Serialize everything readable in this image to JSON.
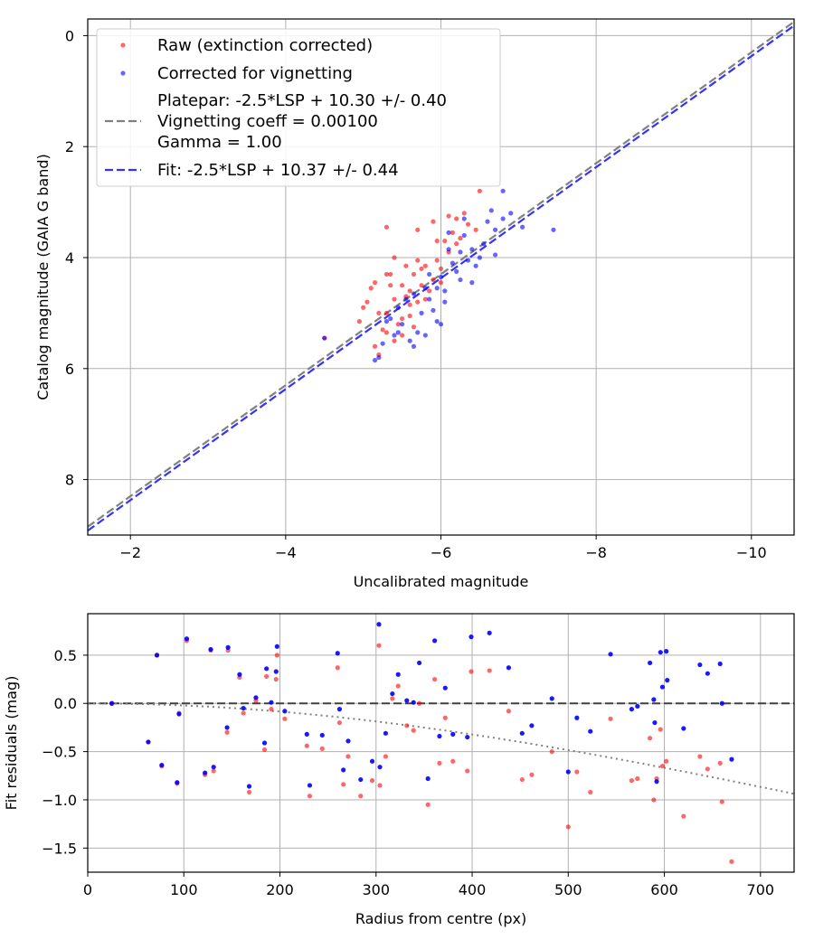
{
  "colors": {
    "raw": "#ff0000",
    "corrected": "#0000ff",
    "platepar_line": "#808080",
    "fit_line": "#3333ff",
    "grid": "#b0b0b0"
  },
  "chart_data": [
    {
      "type": "scatter",
      "xlabel": "Uncalibrated magnitude",
      "ylabel": "Catalog magnitude (GAIA G band)",
      "xlim": [
        -1.45,
        -10.55
      ],
      "ylim": [
        9.0,
        -0.3
      ],
      "x_inverted": true,
      "y_inverted": true,
      "xticks": [
        -2,
        -4,
        -6,
        -8,
        -10
      ],
      "xtick_labels": [
        "−2",
        "−4",
        "−6",
        "−8",
        "−10"
      ],
      "yticks": [
        0,
        2,
        4,
        6,
        8
      ],
      "ytick_labels": [
        "0",
        "2",
        "4",
        "6",
        "8"
      ],
      "grid": true,
      "legend_position": "upper-left",
      "legend": [
        {
          "label": "Raw (extinction corrected)",
          "kind": "dot",
          "color": "#ff0000"
        },
        {
          "label": "Corrected for vignetting",
          "kind": "dot",
          "color": "#0000ff"
        },
        {
          "label": "Platepar: -2.5*LSP + 10.30 +/- 0.40",
          "label2": "Vignetting coeff = 0.00100",
          "label3": "Gamma = 1.00",
          "kind": "dash",
          "color": "#808080"
        },
        {
          "label": "Fit: -2.5*LSP + 10.37 +/- 0.44",
          "kind": "dash",
          "color": "#3333ff"
        }
      ],
      "lines": [
        {
          "name": "Platepar",
          "slope": 1,
          "intercept": 10.3,
          "color": "#808080"
        },
        {
          "name": "Fit",
          "slope": 1,
          "intercept": 10.37,
          "color": "#3333ff"
        }
      ],
      "series": [
        {
          "name": "Raw (extinction corrected)",
          "color": "#ff0000",
          "points": [
            [
              -4.5,
              5.45
            ],
            [
              -5.0,
              4.9
            ],
            [
              -5.2,
              5.75
            ],
            [
              -5.15,
              5.6
            ],
            [
              -5.25,
              5.3
            ],
            [
              -5.3,
              5.0
            ],
            [
              -5.3,
              4.3
            ],
            [
              -5.35,
              4.5
            ],
            [
              -5.4,
              4.75
            ],
            [
              -5.45,
              5.2
            ],
            [
              -5.5,
              4.5
            ],
            [
              -5.55,
              4.15
            ],
            [
              -5.6,
              4.6
            ],
            [
              -5.65,
              4.3
            ],
            [
              -5.7,
              4.8
            ],
            [
              -5.75,
              4.5
            ],
            [
              -5.8,
              4.15
            ],
            [
              -5.8,
              4.75
            ],
            [
              -5.9,
              4.4
            ],
            [
              -5.95,
              4.05
            ],
            [
              -6.0,
              4.45
            ],
            [
              -6.05,
              3.7
            ],
            [
              -6.1,
              3.9
            ],
            [
              -6.15,
              3.55
            ],
            [
              -6.2,
              3.3
            ],
            [
              -6.25,
              3.65
            ],
            [
              -6.3,
              3.2
            ],
            [
              -6.35,
              3.4
            ],
            [
              -6.45,
              3.5
            ],
            [
              -6.5,
              2.8
            ],
            [
              -5.3,
              3.45
            ],
            [
              -5.7,
              3.5
            ],
            [
              -5.9,
              3.35
            ],
            [
              -5.95,
              3.7
            ],
            [
              -6.1,
              3.25
            ],
            [
              -4.95,
              5.15
            ],
            [
              -5.05,
              4.8
            ],
            [
              -5.1,
              4.55
            ],
            [
              -5.2,
              5.0
            ],
            [
              -5.4,
              4.0
            ],
            [
              -5.5,
              5.1
            ],
            [
              -5.6,
              4.85
            ],
            [
              -5.65,
              5.25
            ],
            [
              -5.75,
              4.2
            ],
            [
              -5.85,
              4.6
            ],
            [
              -5.5,
              5.4
            ],
            [
              -5.4,
              5.5
            ],
            [
              -5.3,
              5.35
            ],
            [
              -5.6,
              5.05
            ],
            [
              -6.0,
              4.2
            ],
            [
              -5.15,
              4.45
            ],
            [
              -5.35,
              4.3
            ],
            [
              -5.55,
              4.7
            ],
            [
              -5.7,
              4.05
            ],
            [
              -6.2,
              3.75
            ]
          ]
        },
        {
          "name": "Corrected for vignetting",
          "color": "#0000ff",
          "points": [
            [
              -4.5,
              5.45
            ],
            [
              -5.2,
              5.8
            ],
            [
              -5.25,
              5.55
            ],
            [
              -5.4,
              5.4
            ],
            [
              -5.35,
              5.1
            ],
            [
              -5.45,
              4.9
            ],
            [
              -5.5,
              5.2
            ],
            [
              -5.55,
              4.75
            ],
            [
              -5.6,
              5.5
            ],
            [
              -5.65,
              4.65
            ],
            [
              -5.7,
              5.35
            ],
            [
              -5.75,
              5.0
            ],
            [
              -5.8,
              4.55
            ],
            [
              -5.85,
              4.3
            ],
            [
              -5.9,
              4.95
            ],
            [
              -5.95,
              4.55
            ],
            [
              -6.0,
              4.35
            ],
            [
              -6.05,
              4.6
            ],
            [
              -6.1,
              3.85
            ],
            [
              -6.15,
              4.1
            ],
            [
              -6.2,
              4.25
            ],
            [
              -6.25,
              3.9
            ],
            [
              -6.3,
              3.6
            ],
            [
              -6.35,
              4.05
            ],
            [
              -6.4,
              3.85
            ],
            [
              -6.45,
              4.15
            ],
            [
              -6.55,
              3.75
            ],
            [
              -6.6,
              3.35
            ],
            [
              -6.65,
              3.15
            ],
            [
              -6.7,
              3.5
            ],
            [
              -6.8,
              3.3
            ],
            [
              -6.9,
              3.2
            ],
            [
              -7.05,
              3.45
            ],
            [
              -7.45,
              3.5
            ],
            [
              -6.8,
              2.8
            ],
            [
              -6.5,
              4.0
            ],
            [
              -6.25,
              4.4
            ],
            [
              -6.05,
              4.8
            ],
            [
              -5.95,
              5.15
            ],
            [
              -5.8,
              5.4
            ],
            [
              -5.65,
              5.6
            ],
            [
              -5.45,
              5.35
            ],
            [
              -5.3,
              5.15
            ],
            [
              -5.15,
              5.85
            ],
            [
              -6.3,
              3.3
            ],
            [
              -6.7,
              3.95
            ],
            [
              -6.1,
              3.55
            ],
            [
              -5.85,
              4.75
            ],
            [
              -6.4,
              4.45
            ],
            [
              -6.0,
              5.2
            ]
          ]
        }
      ]
    },
    {
      "type": "scatter",
      "xlabel": "Radius from centre (px)",
      "ylabel": "Fit residuals (mag)",
      "xlim": [
        0,
        735
      ],
      "ylim": [
        -1.75,
        0.93
      ],
      "xticks": [
        0,
        100,
        200,
        300,
        400,
        500,
        600,
        700
      ],
      "xtick_labels": [
        "0",
        "100",
        "200",
        "300",
        "400",
        "500",
        "600",
        "700"
      ],
      "yticks": [
        0.5,
        0.0,
        -0.5,
        -1.0,
        -1.5
      ],
      "ytick_labels": [
        "0.5",
        "0.0",
        "−0.5",
        "−1.0",
        "−1.5"
      ],
      "grid": true,
      "zero_line": 0,
      "vignetting_curve": {
        "coeff": 0.001,
        "color": "#808080"
      },
      "series": [
        {
          "name": "Raw",
          "color": "#ff0000",
          "points": [
            [
              25,
              0.0
            ],
            [
              63,
              -0.4
            ],
            [
              72,
              0.5
            ],
            [
              77,
              -0.65
            ],
            [
              93,
              -0.83
            ],
            [
              95,
              -0.1
            ],
            [
              103,
              0.65
            ],
            [
              122,
              -0.74
            ],
            [
              128,
              0.55
            ],
            [
              131,
              -0.7
            ],
            [
              145,
              -0.3
            ],
            [
              146,
              0.55
            ],
            [
              158,
              0.27
            ],
            [
              162,
              -0.1
            ],
            [
              168,
              -0.92
            ],
            [
              175,
              0.03
            ],
            [
              184,
              -0.48
            ],
            [
              186,
              0.28
            ],
            [
              191,
              -0.06
            ],
            [
              196,
              0.25
            ],
            [
              197,
              0.5
            ],
            [
              205,
              -0.16
            ],
            [
              228,
              -0.44
            ],
            [
              231,
              -0.96
            ],
            [
              244,
              -0.47
            ],
            [
              260,
              0.37
            ],
            [
              262,
              -0.2
            ],
            [
              266,
              -0.84
            ],
            [
              271,
              -0.55
            ],
            [
              284,
              -0.96
            ],
            [
              296,
              -0.8
            ],
            [
              303,
              0.6
            ],
            [
              304,
              -0.85
            ],
            [
              310,
              -0.55
            ],
            [
              317,
              0.05
            ],
            [
              323,
              0.18
            ],
            [
              332,
              -0.23
            ],
            [
              339,
              -0.28
            ],
            [
              345,
              0.0
            ],
            [
              354,
              -1.05
            ],
            [
              361,
              0.25
            ],
            [
              366,
              -0.62
            ],
            [
              372,
              -0.15
            ],
            [
              380,
              -0.6
            ],
            [
              395,
              -0.7
            ],
            [
              399,
              0.33
            ],
            [
              418,
              0.34
            ],
            [
              438,
              -0.08
            ],
            [
              452,
              -0.79
            ],
            [
              462,
              -0.74
            ],
            [
              483,
              -0.5
            ],
            [
              500,
              -1.28
            ],
            [
              509,
              -0.71
            ],
            [
              523,
              -0.92
            ],
            [
              544,
              -0.16
            ],
            [
              566,
              -0.8
            ],
            [
              572,
              -0.78
            ],
            [
              585,
              -0.36
            ],
            [
              589,
              -1.0
            ],
            [
              592,
              -0.78
            ],
            [
              596,
              -0.27
            ],
            [
              598,
              -0.65
            ],
            [
              602,
              -0.6
            ],
            [
              620,
              -1.17
            ],
            [
              637,
              -0.55
            ],
            [
              645,
              -0.68
            ],
            [
              658,
              -0.62
            ],
            [
              670,
              -1.64
            ],
            [
              660,
              -1.02
            ]
          ]
        },
        {
          "name": "Corrected",
          "color": "#0000ff",
          "points": [
            [
              25,
              0.0
            ],
            [
              63,
              -0.4
            ],
            [
              72,
              0.5
            ],
            [
              77,
              -0.64
            ],
            [
              93,
              -0.82
            ],
            [
              95,
              -0.11
            ],
            [
              103,
              0.67
            ],
            [
              122,
              -0.72
            ],
            [
              128,
              0.56
            ],
            [
              131,
              -0.66
            ],
            [
              145,
              -0.25
            ],
            [
              146,
              0.58
            ],
            [
              158,
              0.3
            ],
            [
              162,
              -0.05
            ],
            [
              168,
              -0.86
            ],
            [
              175,
              0.06
            ],
            [
              184,
              -0.41
            ],
            [
              186,
              0.36
            ],
            [
              191,
              0.01
            ],
            [
              196,
              0.33
            ],
            [
              197,
              0.59
            ],
            [
              205,
              -0.08
            ],
            [
              228,
              -0.32
            ],
            [
              231,
              -0.85
            ],
            [
              244,
              -0.33
            ],
            [
              260,
              0.52
            ],
            [
              262,
              -0.06
            ],
            [
              266,
              -0.69
            ],
            [
              271,
              -0.39
            ],
            [
              284,
              -0.79
            ],
            [
              296,
              -0.6
            ],
            [
              303,
              0.82
            ],
            [
              304,
              -0.66
            ],
            [
              310,
              -0.31
            ],
            [
              317,
              0.1
            ],
            [
              323,
              0.3
            ],
            [
              332,
              0.03
            ],
            [
              339,
              0.01
            ],
            [
              345,
              0.42
            ],
            [
              354,
              -0.78
            ],
            [
              361,
              0.65
            ],
            [
              366,
              -0.34
            ],
            [
              372,
              0.16
            ],
            [
              380,
              -0.32
            ],
            [
              395,
              -0.35
            ],
            [
              399,
              0.69
            ],
            [
              418,
              0.73
            ],
            [
              438,
              0.37
            ],
            [
              452,
              -0.31
            ],
            [
              462,
              -0.23
            ],
            [
              483,
              0.05
            ],
            [
              500,
              -0.71
            ],
            [
              509,
              -0.15
            ],
            [
              523,
              -0.29
            ],
            [
              544,
              0.51
            ],
            [
              566,
              -0.06
            ],
            [
              572,
              -0.03
            ],
            [
              585,
              0.42
            ],
            [
              589,
              0.04
            ],
            [
              592,
              -0.81
            ],
            [
              596,
              0.53
            ],
            [
              598,
              0.17
            ],
            [
              602,
              0.54
            ],
            [
              620,
              -0.26
            ],
            [
              637,
              0.4
            ],
            [
              645,
              0.31
            ],
            [
              658,
              0.41
            ],
            [
              670,
              -0.58
            ],
            [
              660,
              0.0
            ],
            [
              603,
              0.24
            ],
            [
              590,
              -0.2
            ]
          ]
        }
      ]
    }
  ]
}
